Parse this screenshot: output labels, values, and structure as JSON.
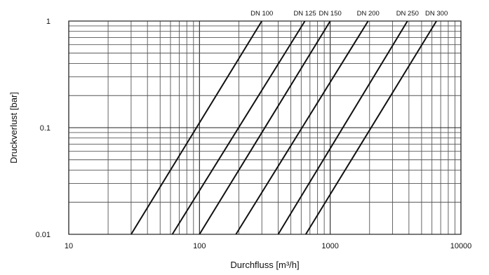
{
  "chart_data": {
    "type": "line",
    "x_scale": "log",
    "y_scale": "log",
    "xlim": [
      10,
      10000
    ],
    "ylim": [
      0.01,
      1
    ],
    "grid": true,
    "xlabel": "Durchfluss [m³/h]",
    "ylabel": "Druckverlust [bar]",
    "x_ticks": [
      {
        "value": 10,
        "label": "10"
      },
      {
        "value": 100,
        "label": "100"
      },
      {
        "value": 1000,
        "label": "1000"
      },
      {
        "value": 10000,
        "label": "10000"
      }
    ],
    "y_ticks": [
      {
        "value": 0.01,
        "label": "0.01"
      },
      {
        "value": 0.1,
        "label": "0.1"
      },
      {
        "value": 1,
        "label": "1"
      }
    ],
    "series": [
      {
        "name": "DN 100",
        "x": [
          30,
          300
        ],
        "y": [
          0.01,
          1
        ]
      },
      {
        "name": "DN 125",
        "x": [
          62,
          640
        ],
        "y": [
          0.01,
          1
        ]
      },
      {
        "name": "DN 150",
        "x": [
          100,
          1000
        ],
        "y": [
          0.01,
          1
        ]
      },
      {
        "name": "DN 200",
        "x": [
          190,
          1950
        ],
        "y": [
          0.01,
          1
        ]
      },
      {
        "name": "DN 250",
        "x": [
          400,
          3900
        ],
        "y": [
          0.01,
          1
        ]
      },
      {
        "name": "DN 300",
        "x": [
          650,
          6500
        ],
        "y": [
          0.01,
          1
        ]
      }
    ]
  }
}
